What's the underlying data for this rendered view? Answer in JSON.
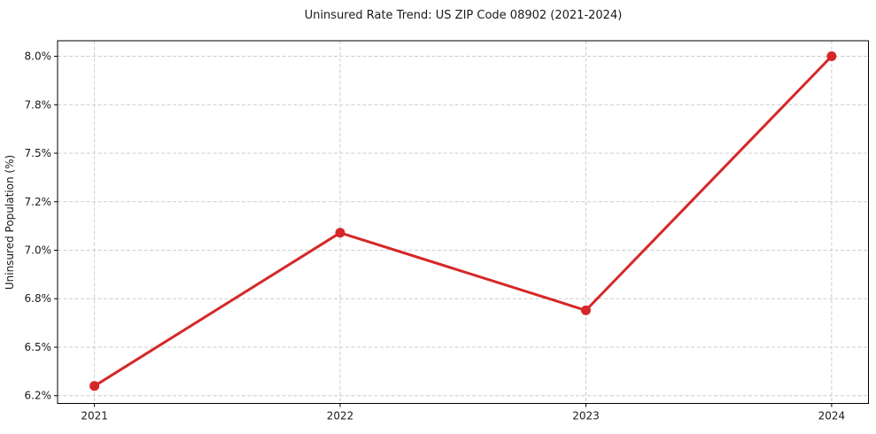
{
  "chart_data": {
    "type": "line",
    "title": "Uninsured Rate Trend: US ZIP Code 08902 (2021-2024)",
    "xlabel": "",
    "ylabel": "Uninsured Population (%)",
    "x": [
      2021,
      2022,
      2023,
      2024
    ],
    "series": [
      {
        "values": [
          6.3,
          7.09,
          6.69,
          8.0
        ],
        "color": "#d62728",
        "marker": "circle"
      }
    ],
    "xtick_labels": [
      "2021",
      "2022",
      "2023",
      "2024"
    ],
    "ytick_values": [
      6.25,
      6.5,
      6.75,
      7.0,
      7.25,
      7.5,
      7.75,
      8.0
    ],
    "ytick_labels": [
      "6.2%",
      "6.5%",
      "6.8%",
      "7.0%",
      "7.2%",
      "7.5%",
      "7.8%",
      "8.0%"
    ],
    "xlim": [
      2020.85,
      2024.15
    ],
    "ylim": [
      6.21,
      8.08
    ],
    "grid": "both",
    "grid_style": "dashed",
    "grid_color": "#cccccc",
    "spine_color": "#000000",
    "text_color": "#1a1a1a",
    "background": "#ffffff",
    "legend": "none"
  }
}
